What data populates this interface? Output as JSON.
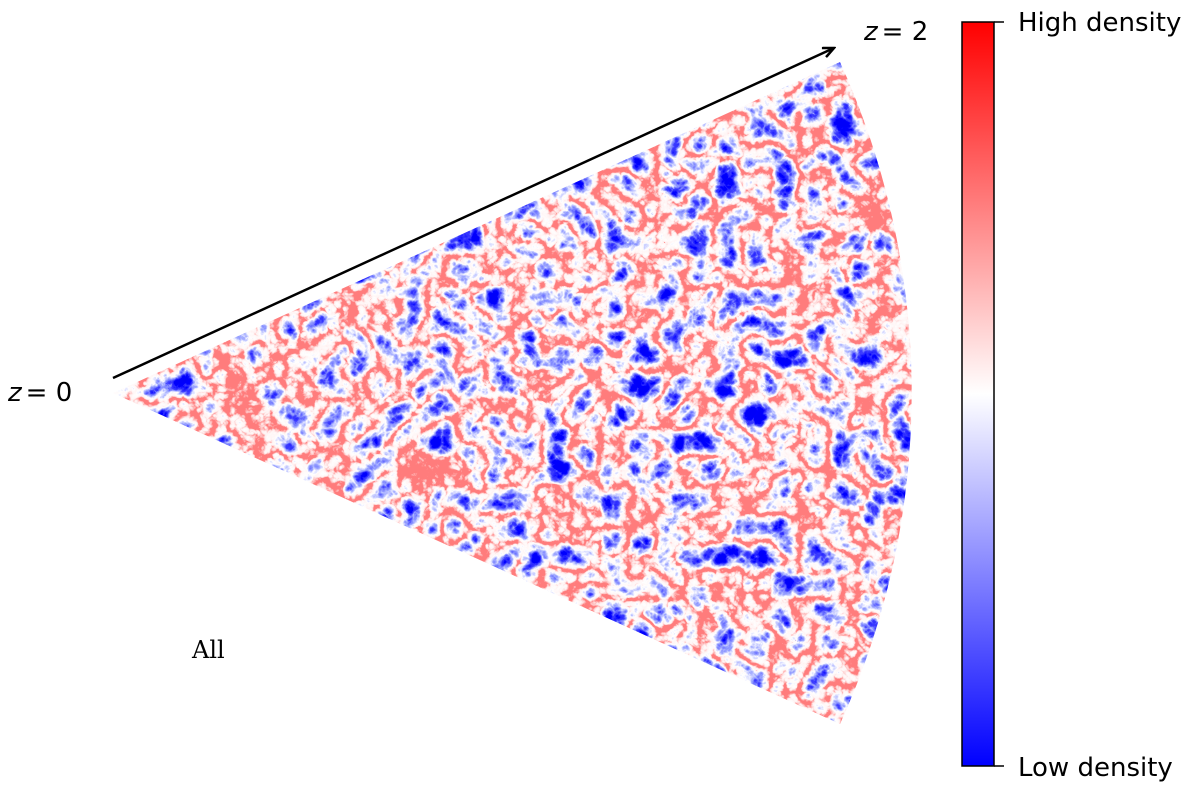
{
  "redshift_start": {
    "symbol": "z",
    "value": "= 0"
  },
  "redshift_end": {
    "symbol": "z",
    "value": "= 2"
  },
  "panel_label": "All",
  "colorbar": {
    "top_label": "High density",
    "bottom_label": "Low density"
  }
}
